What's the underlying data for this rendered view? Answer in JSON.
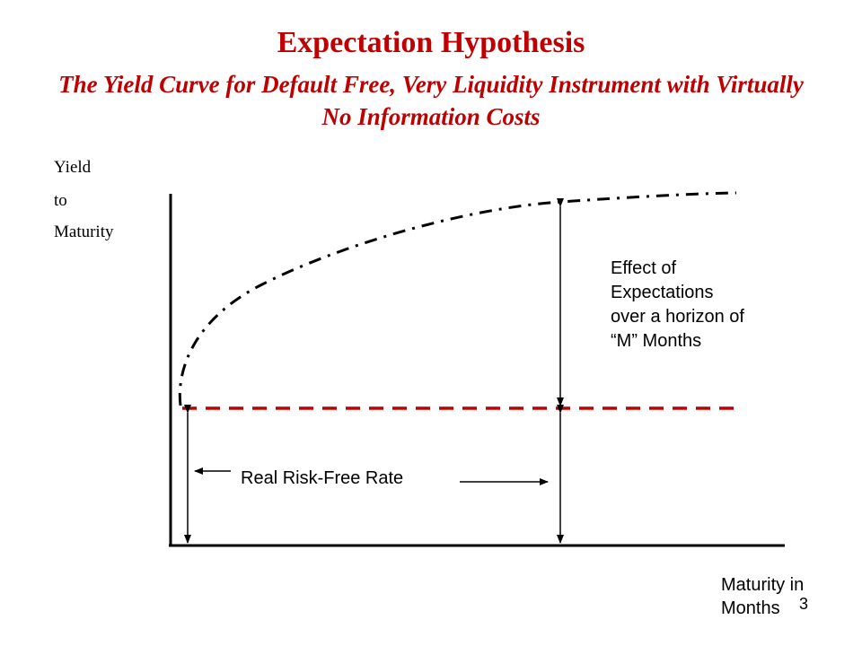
{
  "slide": {
    "title": "Expectation Hypothesis",
    "subtitle": "The Yield Curve for Default Free, Very Liquidity Instrument with Virtually No Information Costs",
    "page_number": "3"
  },
  "axes": {
    "y_label_lines": [
      "Yield",
      "to",
      "Maturity"
    ],
    "x_label_lines": [
      "Maturity in",
      "Months"
    ]
  },
  "annotations": {
    "expectations_lines": [
      "Effect of",
      "Expectations",
      "over a horizon of",
      "“M” Months"
    ],
    "real_rate": "Real Risk-Free Rate"
  },
  "colors": {
    "title": "#c00000",
    "real_rate_line": "#c00000",
    "curve": "#000000",
    "axes": "#000000"
  }
}
